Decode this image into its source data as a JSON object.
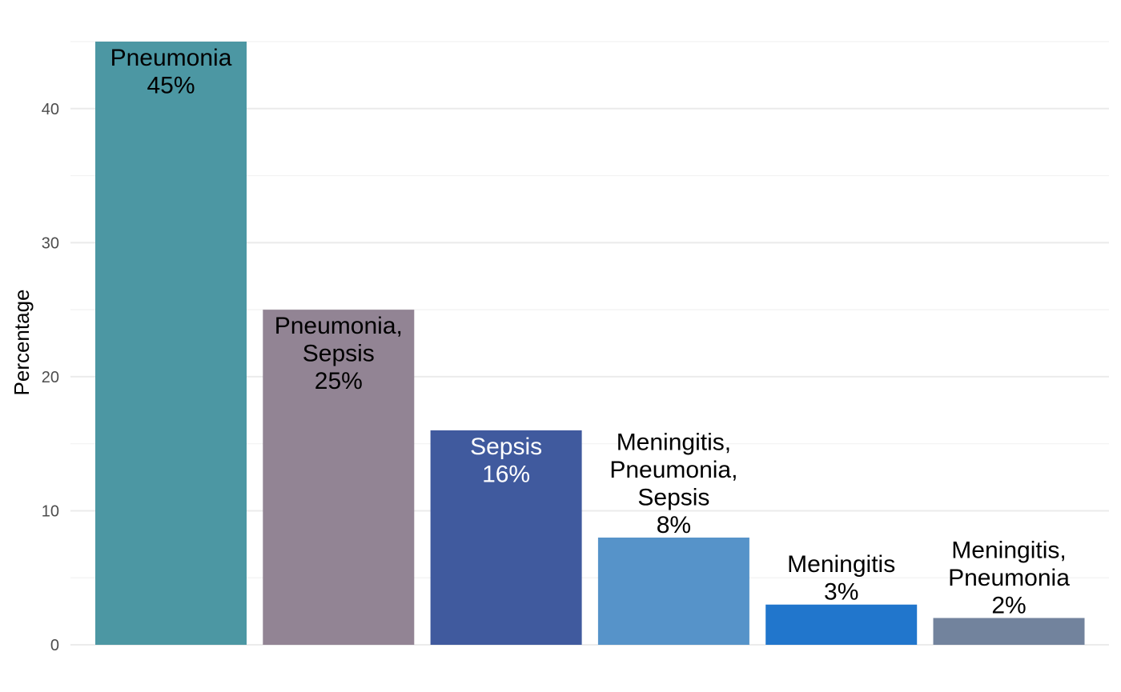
{
  "chart_data": {
    "type": "bar",
    "title": "",
    "xlabel": "",
    "ylabel": "Percentage",
    "ylim": [
      0,
      45
    ],
    "yticks": [
      0,
      10,
      20,
      30,
      40
    ],
    "grid": true,
    "legend": "none",
    "categories": [
      "Pneumonia",
      "Pneumonia, Sepsis",
      "Sepsis",
      "Meningitis, Pneumonia, Sepsis",
      "Meningitis",
      "Meningitis, Pneumonia"
    ],
    "values": [
      45,
      25,
      16,
      8,
      3,
      2
    ],
    "data_labels": [
      [
        "Pneumonia",
        "45%"
      ],
      [
        "Pneumonia,",
        "Sepsis",
        "25%"
      ],
      [
        "Sepsis",
        "16%"
      ],
      [
        "Meningitis,",
        "Pneumonia,",
        "Sepsis",
        "8%"
      ],
      [
        "Meningitis",
        "3%"
      ],
      [
        "Meningitis,",
        "Pneumonia",
        "2%"
      ]
    ],
    "colors": [
      "#4c97a3",
      "#928494",
      "#405a9e",
      "#5693c9",
      "#2176cc",
      "#72839d"
    ],
    "label_colors": [
      "#000000",
      "#000000",
      "#ffffff",
      "#000000",
      "#000000",
      "#000000"
    ]
  }
}
